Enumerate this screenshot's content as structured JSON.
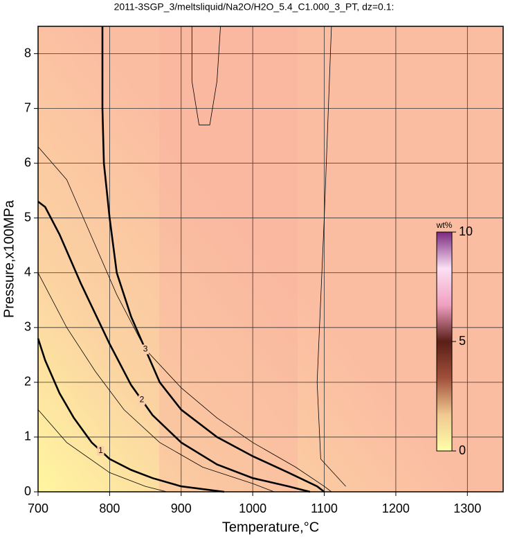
{
  "chart_data": {
    "type": "contour",
    "title": "2011-3SGP_3/meltsliquid/Na2O/H2O_5.4_C1.000_3_PT, dz=0.1:",
    "x_label": "Temperature,°C",
    "y_label": "Pressure,x100MPa",
    "xlim": [
      700,
      1350
    ],
    "ylim": [
      0,
      8.5
    ],
    "xticks": [
      700,
      800,
      900,
      1000,
      1100,
      1200,
      1300
    ],
    "yticks": [
      0,
      1,
      2,
      3,
      4,
      5,
      6,
      7,
      8
    ],
    "grid": true,
    "contours": [
      {
        "level": 0.5,
        "x": [
          700,
          740,
          800,
          850,
          880
        ],
        "y": [
          1.5,
          0.9,
          0.35,
          0.1,
          0
        ]
      },
      {
        "level": 1,
        "bold": true,
        "x": [
          700,
          710,
          730,
          750,
          775,
          800,
          830,
          860,
          900,
          960
        ],
        "y": [
          2.8,
          2.4,
          1.8,
          1.35,
          0.9,
          0.6,
          0.4,
          0.25,
          0.1,
          0
        ]
      },
      {
        "level": 1.5,
        "x": [
          700,
          740,
          780,
          820,
          870,
          930,
          1000,
          1030
        ],
        "y": [
          4,
          3,
          2.2,
          1.5,
          0.9,
          0.45,
          0.15,
          0
        ]
      },
      {
        "level": 2,
        "bold": true,
        "x": [
          700,
          710,
          730,
          760,
          800,
          830,
          860,
          900,
          950,
          1000,
          1050,
          1080
        ],
        "y": [
          5.3,
          5.2,
          4.7,
          3.8,
          2.7,
          1.95,
          1.4,
          0.9,
          0.5,
          0.25,
          0.1,
          0
        ]
      },
      {
        "level": 2.5,
        "x": [
          700,
          740,
          770,
          810,
          850,
          900,
          950,
          1000,
          1060,
          1100,
          1110
        ],
        "y": [
          6.3,
          5.7,
          4.8,
          3.6,
          2.6,
          1.9,
          1.35,
          0.9,
          0.45,
          0.1,
          0
        ]
      },
      {
        "level": 3,
        "bold": true,
        "x": [
          790,
          790,
          792,
          800,
          810,
          830,
          870,
          900,
          950,
          1000,
          1050,
          1090,
          1100
        ],
        "y": [
          8.5,
          7,
          6,
          5,
          4,
          3.2,
          2,
          1.5,
          1,
          0.65,
          0.35,
          0.1,
          0
        ]
      },
      {
        "level": 3.1,
        "x": [
          1110,
          1100,
          1090,
          1095,
          1130
        ],
        "y": [
          8.5,
          5,
          2,
          0.6,
          0.1
        ]
      },
      {
        "level": 3.2,
        "x": [
          915,
          915,
          925,
          940,
          950,
          955
        ],
        "y": [
          8.5,
          7.5,
          6.7,
          6.7,
          7.5,
          8.5
        ]
      }
    ],
    "colorbar": {
      "label": "wt%",
      "lim": [
        0,
        10
      ],
      "ticks": [
        0,
        5,
        10
      ],
      "colors": [
        "#ffffa8",
        "#f0c890",
        "#a0503a",
        "#5a1e18",
        "#f0a0c0",
        "#fce0f4",
        "#7a2a80"
      ]
    }
  }
}
